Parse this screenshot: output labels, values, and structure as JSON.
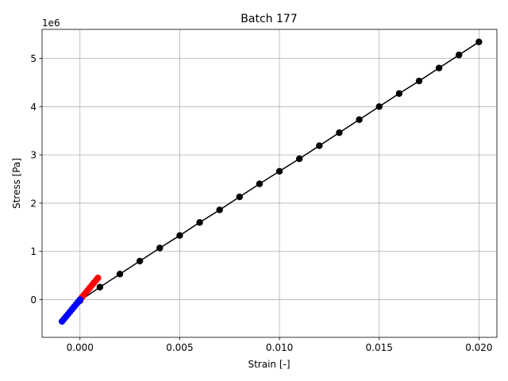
{
  "chart_data": {
    "type": "line",
    "title": "Batch 177",
    "xlabel": "Strain [-]",
    "ylabel": "Stress [Pa]",
    "y_offset_label": "1e6",
    "xlim": [
      -0.0019,
      0.0209
    ],
    "ylim": [
      -0.78,
      5.6
    ],
    "y_scale_factor": 1000000,
    "grid": true,
    "x_ticks": [
      0.0,
      0.005,
      0.01,
      0.015,
      0.02
    ],
    "x_tick_labels": [
      "0.000",
      "0.005",
      "0.010",
      "0.015",
      "0.020"
    ],
    "y_ticks": [
      0,
      1,
      2,
      3,
      4,
      5
    ],
    "y_tick_labels": [
      "0",
      "1",
      "2",
      "3",
      "4",
      "5"
    ],
    "series": [
      {
        "color": "#000000",
        "style": "line+markers",
        "x": [
          0.0,
          0.001,
          0.002,
          0.003,
          0.004,
          0.005,
          0.006,
          0.007,
          0.008,
          0.009,
          0.01,
          0.011,
          0.012,
          0.013,
          0.014,
          0.015,
          0.016,
          0.017,
          0.018,
          0.019,
          0.02
        ],
        "y": [
          -0.02,
          0.26,
          0.53,
          0.8,
          1.07,
          1.33,
          1.6,
          1.86,
          2.13,
          2.4,
          2.66,
          2.92,
          3.19,
          3.46,
          3.73,
          4.0,
          4.27,
          4.53,
          4.8,
          5.07,
          5.34
        ]
      },
      {
        "color": "#ff0000",
        "style": "markers",
        "x": [
          0.0,
          0.0001,
          0.0002,
          0.0003,
          0.0004,
          0.0005,
          0.0006,
          0.0007,
          0.0008,
          0.0009
        ],
        "y": [
          0.0,
          0.05,
          0.1,
          0.15,
          0.2,
          0.25,
          0.3,
          0.35,
          0.4,
          0.45
        ]
      },
      {
        "color": "#0000ff",
        "style": "markers",
        "x": [
          -0.0009,
          -0.0008,
          -0.0007,
          -0.0006,
          -0.0005,
          -0.0004,
          -0.0003,
          -0.0002,
          -0.0001,
          0.0
        ],
        "y": [
          -0.45,
          -0.4,
          -0.35,
          -0.3,
          -0.25,
          -0.2,
          -0.15,
          -0.1,
          -0.05,
          0.0
        ]
      }
    ]
  }
}
